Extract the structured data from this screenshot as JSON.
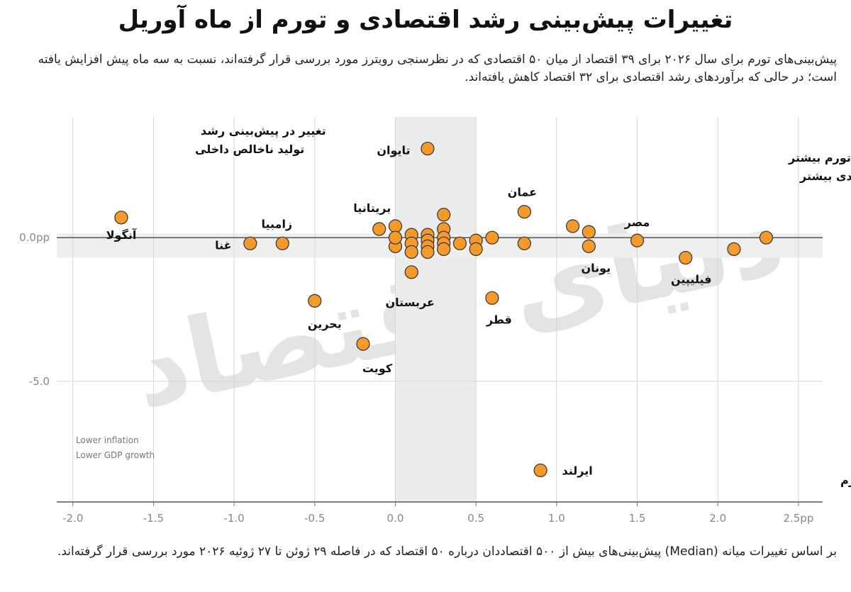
{
  "header": {
    "title": "تغییرات پیش‌بینی رشد اقتصادی و تورم از ماه آوریل",
    "subtitle": "پیش‌بینی‌های تورم برای سال ۲۰۲۶ برای ۳۹ اقتصاد از میان ۵۰ اقتصادی که در نظرسنجی رویترز مورد بررسی قرار گرفته‌اند، نسبت به سه ماه پیش افزایش یافته است؛ در حالی که برآوردهای رشد اقتصادی برای ۳۲ اقتصاد کاهش یافته‌اند."
  },
  "footnote": "بر اساس تغییرات میانه (Median) پیش‌بینی‌های بیش از ۵۰۰ اقتصاددان درباره ۵۰ اقتصاد که در فاصله ۲۹ ژوئن تا ۲۷ ژوئیه ۲۰۲۶ مورد بررسی قرار گرفته‌اند.",
  "watermark": "دنیای اقتصاد",
  "chart_data": {
    "type": "scatter",
    "xlabel": "تغییر در پیش‌بینی تورم",
    "ylabel": [
      "تغییر در پیش‌بینی رشد",
      "تولید ناخالص داخلی"
    ],
    "xlim": [
      -2.1,
      2.65
    ],
    "ylim": [
      -9.2,
      4.2
    ],
    "x_ticks": [
      -2.0,
      -1.5,
      -1.0,
      -0.5,
      0.0,
      0.5,
      1.0,
      1.5,
      2.0,
      2.5
    ],
    "x_tick_labels": [
      "-2.0",
      "-1.5",
      "-1.0",
      "-0.5",
      "0.0",
      "0.5",
      "1.0",
      "1.5",
      "2.0",
      "2.5pp"
    ],
    "y_ticks": [
      0.0,
      -5.0
    ],
    "y_tick_labels": [
      "0.0pp",
      "-5.0"
    ],
    "grid": true,
    "shaded_band_x": [
      0.0,
      0.5
    ],
    "shaded_band_y": [
      -0.7,
      0.15
    ],
    "quadrant_top_right": [
      "تورم بیشتر",
      "رشد اقتصادی بیشتر"
    ],
    "quadrant_bottom_left": [
      "Lower inflation",
      "Lower GDP growth"
    ],
    "point_color": "#f39a2b",
    "point_edge": "#333333",
    "points": [
      {
        "x": -1.7,
        "y": 0.7,
        "label": "آنگولا"
      },
      {
        "x": -0.9,
        "y": -0.2,
        "label": "غنا"
      },
      {
        "x": -0.7,
        "y": -0.2,
        "label": "زامبیا"
      },
      {
        "x": -0.5,
        "y": -2.2,
        "label": "بحرین"
      },
      {
        "x": -0.2,
        "y": -3.7,
        "label": "کویت"
      },
      {
        "x": -0.1,
        "y": 0.3,
        "label": "بریتانیا"
      },
      {
        "x": 0.0,
        "y": 0.4,
        "label": ""
      },
      {
        "x": 0.0,
        "y": -0.3,
        "label": ""
      },
      {
        "x": 0.0,
        "y": 0.0,
        "label": ""
      },
      {
        "x": 0.1,
        "y": 0.1,
        "label": ""
      },
      {
        "x": 0.1,
        "y": -0.2,
        "label": ""
      },
      {
        "x": 0.1,
        "y": -0.5,
        "label": ""
      },
      {
        "x": 0.2,
        "y": 3.1,
        "label": "تایوان"
      },
      {
        "x": 0.2,
        "y": 0.1,
        "label": ""
      },
      {
        "x": 0.2,
        "y": -0.1,
        "label": ""
      },
      {
        "x": 0.2,
        "y": -0.3,
        "label": ""
      },
      {
        "x": 0.2,
        "y": -0.5,
        "label": ""
      },
      {
        "x": 0.1,
        "y": -1.2,
        "label": "عربستان"
      },
      {
        "x": 0.3,
        "y": 0.8,
        "label": ""
      },
      {
        "x": 0.3,
        "y": 0.3,
        "label": ""
      },
      {
        "x": 0.3,
        "y": 0.0,
        "label": ""
      },
      {
        "x": 0.3,
        "y": -0.2,
        "label": ""
      },
      {
        "x": 0.3,
        "y": -0.4,
        "label": ""
      },
      {
        "x": 0.4,
        "y": -0.2,
        "label": ""
      },
      {
        "x": 0.5,
        "y": -0.1,
        "label": ""
      },
      {
        "x": 0.5,
        "y": -0.4,
        "label": ""
      },
      {
        "x": 0.6,
        "y": 0.0,
        "label": ""
      },
      {
        "x": 0.6,
        "y": -2.1,
        "label": "قطر"
      },
      {
        "x": 0.8,
        "y": 0.9,
        "label": "عمان"
      },
      {
        "x": 0.8,
        "y": -0.2,
        "label": ""
      },
      {
        "x": 0.9,
        "y": -8.1,
        "label": "ایرلند"
      },
      {
        "x": 1.1,
        "y": 0.4,
        "label": ""
      },
      {
        "x": 1.2,
        "y": 0.2,
        "label": ""
      },
      {
        "x": 1.2,
        "y": -0.3,
        "label": "یونان"
      },
      {
        "x": 1.5,
        "y": -0.1,
        "label": "مصر"
      },
      {
        "x": 1.8,
        "y": -0.7,
        "label": "فیلیپین"
      },
      {
        "x": 2.1,
        "y": -0.4,
        "label": ""
      },
      {
        "x": 2.3,
        "y": 0.0,
        "label": ""
      }
    ]
  }
}
